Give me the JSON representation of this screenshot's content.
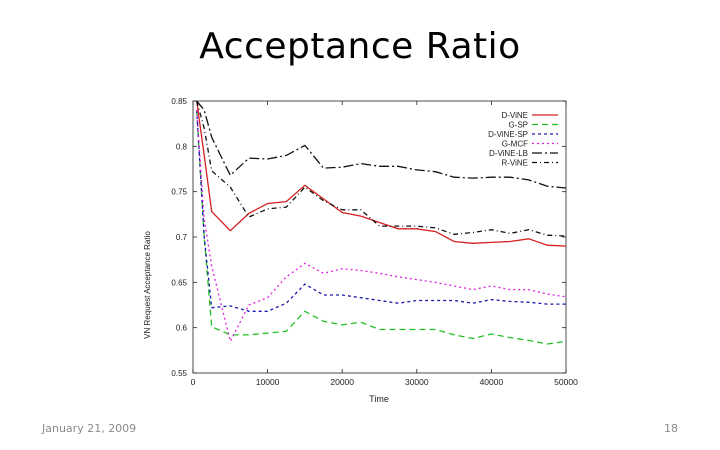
{
  "slide": {
    "title": "Acceptance Ratio",
    "footer_date": "January 21, 2009",
    "page_number": "18"
  },
  "chart_data": {
    "type": "line",
    "title": "",
    "xlabel": "Time",
    "ylabel": "VN Request Acceptance Ratio",
    "xlim": [
      0,
      50000
    ],
    "ylim": [
      0.55,
      0.85
    ],
    "xticks": [
      0,
      10000,
      20000,
      30000,
      40000,
      50000
    ],
    "xtick_labels": [
      "0",
      "10000",
      "20000",
      "30000",
      "40000",
      "50000"
    ],
    "yticks": [
      0.55,
      0.6,
      0.65,
      0.7,
      0.75,
      0.8,
      0.85
    ],
    "ytick_labels": [
      "0.55",
      "0.6",
      "0.65",
      "0.7",
      "0.75",
      "0.8",
      "0.85"
    ],
    "grid": false,
    "legend_position": "top-right",
    "series": [
      {
        "name": "D-ViNE",
        "color": "#d42020",
        "dash": "",
        "x": [
          500,
          1500,
          2500,
          5000,
          7500,
          10000,
          12500,
          15000,
          17500,
          20000,
          22500,
          25000,
          27500,
          30000,
          32500,
          35000,
          37500,
          40000,
          42500,
          45000,
          47500,
          50000
        ],
        "y": [
          0.85,
          0.79,
          0.728,
          0.707,
          0.726,
          0.737,
          0.739,
          0.757,
          0.742,
          0.727,
          0.723,
          0.716,
          0.709,
          0.709,
          0.706,
          0.695,
          0.693,
          0.694,
          0.695,
          0.698,
          0.691,
          0.69
        ]
      },
      {
        "name": "G-SP",
        "color": "#22c022",
        "dash": "6,4",
        "x": [
          500,
          1500,
          2500,
          5000,
          7500,
          10000,
          12500,
          15000,
          17500,
          20000,
          22500,
          25000,
          27500,
          30000,
          32500,
          35000,
          37500,
          40000,
          42500,
          45000,
          47500,
          50000
        ],
        "y": [
          0.84,
          0.7,
          0.601,
          0.592,
          0.592,
          0.594,
          0.596,
          0.618,
          0.607,
          0.603,
          0.606,
          0.598,
          0.598,
          0.598,
          0.598,
          0.592,
          0.588,
          0.593,
          0.589,
          0.586,
          0.582,
          0.585
        ]
      },
      {
        "name": "D-ViNE-SP",
        "color": "#1a1aaa",
        "dash": "3,3",
        "x": [
          500,
          1500,
          2500,
          5000,
          7500,
          10000,
          12500,
          15000,
          17500,
          20000,
          22500,
          25000,
          27500,
          30000,
          32500,
          35000,
          37500,
          40000,
          42500,
          45000,
          47500,
          50000
        ],
        "y": [
          0.84,
          0.7,
          0.622,
          0.624,
          0.618,
          0.618,
          0.627,
          0.648,
          0.636,
          0.636,
          0.633,
          0.63,
          0.627,
          0.63,
          0.63,
          0.63,
          0.627,
          0.631,
          0.629,
          0.628,
          0.626,
          0.626
        ]
      },
      {
        "name": "G-MCF",
        "color": "#e020e0",
        "dash": "2,3",
        "x": [
          500,
          1500,
          2500,
          5000,
          7500,
          10000,
          12500,
          15000,
          17500,
          20000,
          22500,
          25000,
          27500,
          30000,
          32500,
          35000,
          37500,
          40000,
          42500,
          45000,
          47500,
          50000
        ],
        "y": [
          0.84,
          0.72,
          0.668,
          0.585,
          0.625,
          0.633,
          0.656,
          0.671,
          0.66,
          0.665,
          0.663,
          0.66,
          0.656,
          0.653,
          0.65,
          0.646,
          0.642,
          0.646,
          0.642,
          0.642,
          0.637,
          0.634
        ]
      },
      {
        "name": "D-ViNE-LB",
        "color": "#111111",
        "dash": "10,3,2,3",
        "x": [
          500,
          1500,
          2500,
          5000,
          7500,
          10000,
          12500,
          15000,
          17500,
          20000,
          22500,
          25000,
          27500,
          30000,
          32500,
          35000,
          37500,
          40000,
          42500,
          45000,
          47500,
          50000
        ],
        "y": [
          0.85,
          0.84,
          0.81,
          0.768,
          0.787,
          0.786,
          0.79,
          0.801,
          0.776,
          0.777,
          0.781,
          0.778,
          0.778,
          0.774,
          0.772,
          0.766,
          0.765,
          0.766,
          0.766,
          0.763,
          0.756,
          0.754
        ]
      },
      {
        "name": "R-ViNE",
        "color": "#111111",
        "dash": "5,3,1,3",
        "x": [
          500,
          1500,
          2500,
          5000,
          7500,
          10000,
          12500,
          15000,
          17500,
          20000,
          22500,
          25000,
          27500,
          30000,
          32500,
          35000,
          37500,
          40000,
          42500,
          45000,
          47500,
          50000
        ],
        "y": [
          0.85,
          0.82,
          0.773,
          0.755,
          0.722,
          0.731,
          0.733,
          0.755,
          0.74,
          0.73,
          0.73,
          0.712,
          0.712,
          0.712,
          0.71,
          0.703,
          0.705,
          0.708,
          0.704,
          0.708,
          0.702,
          0.701
        ]
      }
    ]
  }
}
